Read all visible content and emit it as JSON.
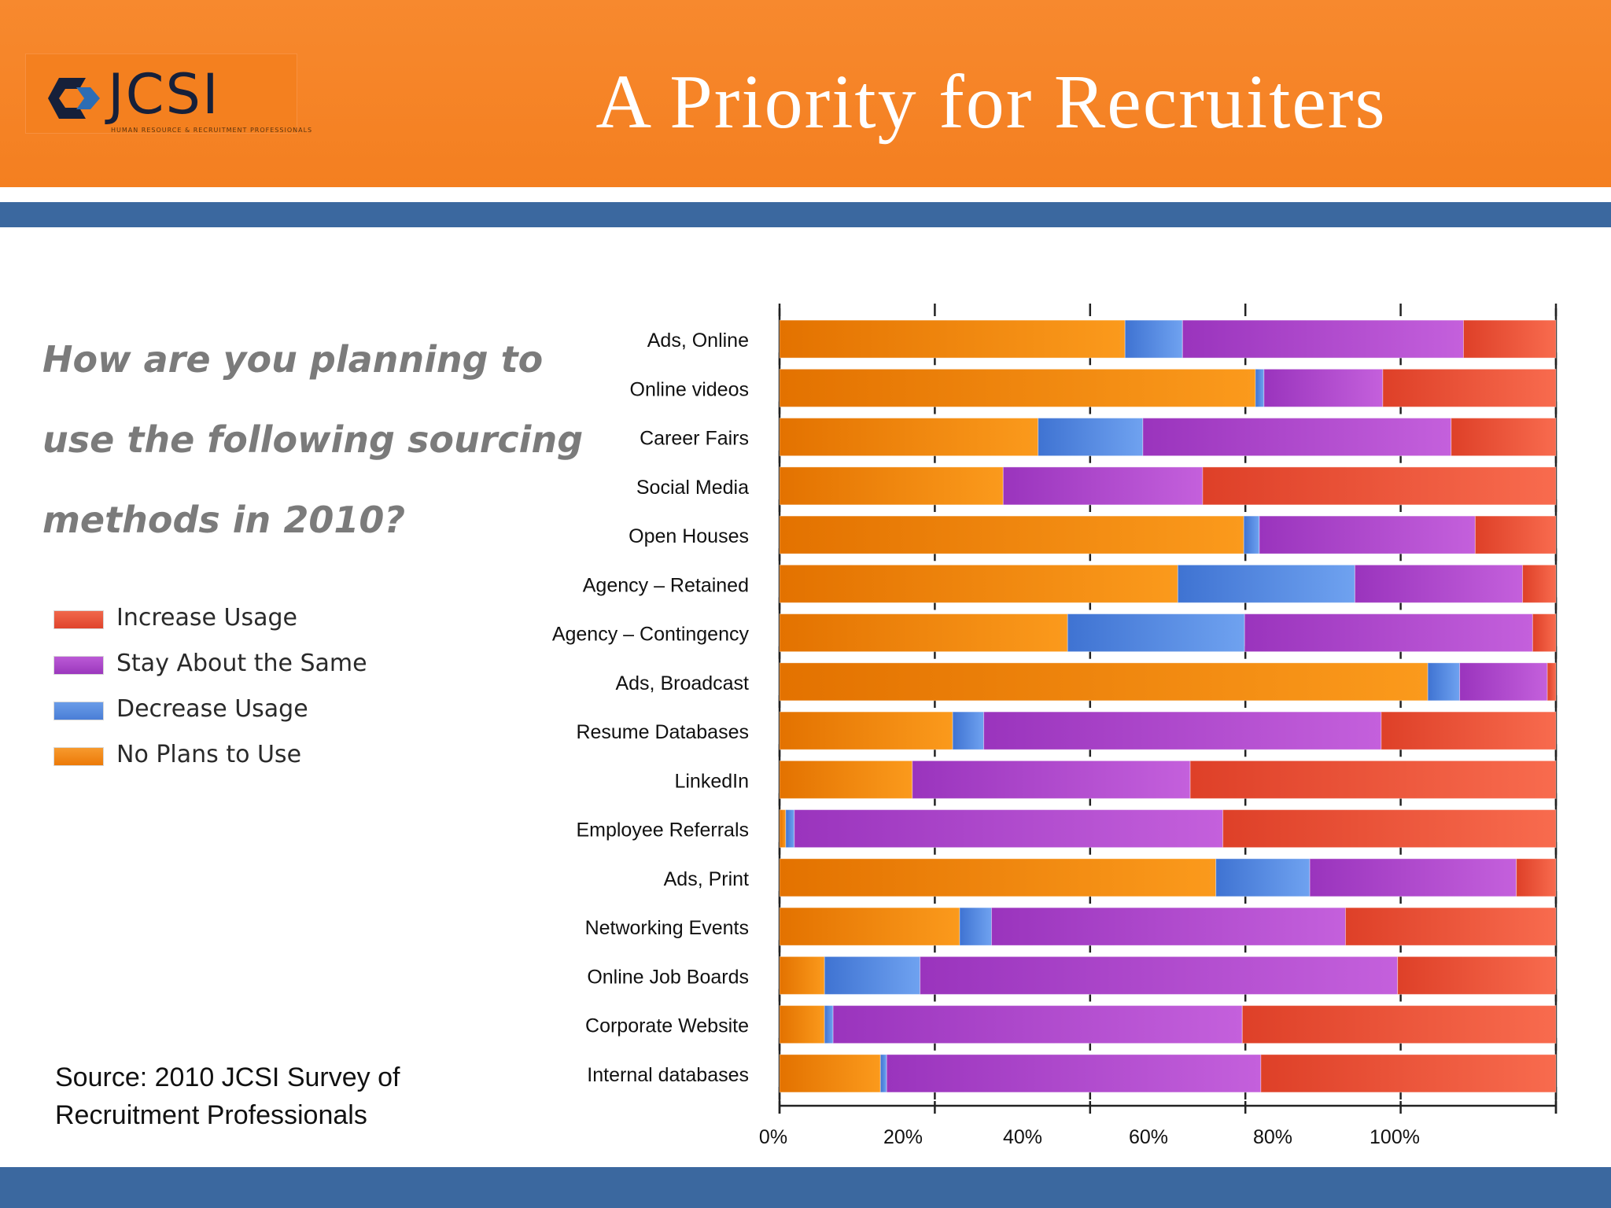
{
  "header": {
    "title": "A Priority for Recruiters",
    "logo_text": "JCSI",
    "logo_tagline": "HUMAN RESOURCE & RECRUITMENT PROFESSIONALS"
  },
  "question": {
    "lines": [
      "How are you planning to",
      "use the following sourcing",
      "methods in 2010?"
    ]
  },
  "source": {
    "lines": [
      "Source: 2010 JCSI Survey of",
      "Recruitment Professionals"
    ]
  },
  "colors": {
    "header_orange": "#f4801f",
    "stripe_blue": "#3b689f",
    "increase": "#e84f36",
    "same": "#a43fc4",
    "decrease": "#4f84dc",
    "no_plans": "#f07f0c"
  },
  "chart_data": {
    "type": "bar",
    "orientation": "horizontal",
    "stacked": true,
    "categories": [
      "Ads, Online",
      "Online videos",
      "Career Fairs",
      "Social Media",
      "Open Houses",
      "Agency – Retained",
      "Agency – Contingency",
      "Ads,  Broadcast",
      "Resume Databases",
      "LinkedIn",
      "Employee Referrals",
      "Ads, Print",
      "Networking Events",
      "Online Job Boards",
      "Corporate Website",
      "Internal databases"
    ],
    "series": [
      {
        "name": "No Plans to Use",
        "color": "#f07f0c",
        "values": [
          44.5,
          61.3,
          33.3,
          28.8,
          59.8,
          51.3,
          37.1,
          83.5,
          22.3,
          17.1,
          0.8,
          56.2,
          23.2,
          5.8,
          5.8,
          13.0
        ]
      },
      {
        "name": "Decrease Usage",
        "color": "#4f84dc",
        "values": [
          7.4,
          1.1,
          13.5,
          0.0,
          2.0,
          22.8,
          22.8,
          4.1,
          4.0,
          0.0,
          1.1,
          12.1,
          4.1,
          12.3,
          1.1,
          0.8
        ]
      },
      {
        "name": "Stay About the Same",
        "color": "#a43fc4",
        "values": [
          36.2,
          15.3,
          39.7,
          25.7,
          27.8,
          21.6,
          37.1,
          11.3,
          51.2,
          35.8,
          55.2,
          26.6,
          45.6,
          61.5,
          52.7,
          48.2
        ]
      },
      {
        "name": "Increase Usage",
        "color": "#e84f36",
        "values": [
          11.9,
          22.3,
          13.5,
          45.5,
          10.4,
          4.3,
          3.0,
          1.1,
          22.5,
          47.1,
          42.9,
          5.1,
          27.1,
          20.4,
          40.4,
          38.0
        ]
      }
    ],
    "legend_order": [
      "Increase Usage",
      "Stay About the Same",
      "Decrease Usage",
      "No Plans to Use"
    ],
    "legend_position": "left",
    "x_tick_labels": [
      "0%",
      "20%",
      "40%",
      "60%",
      "80%",
      "100%"
    ],
    "xlim": [
      0,
      100
    ],
    "grid": false
  }
}
